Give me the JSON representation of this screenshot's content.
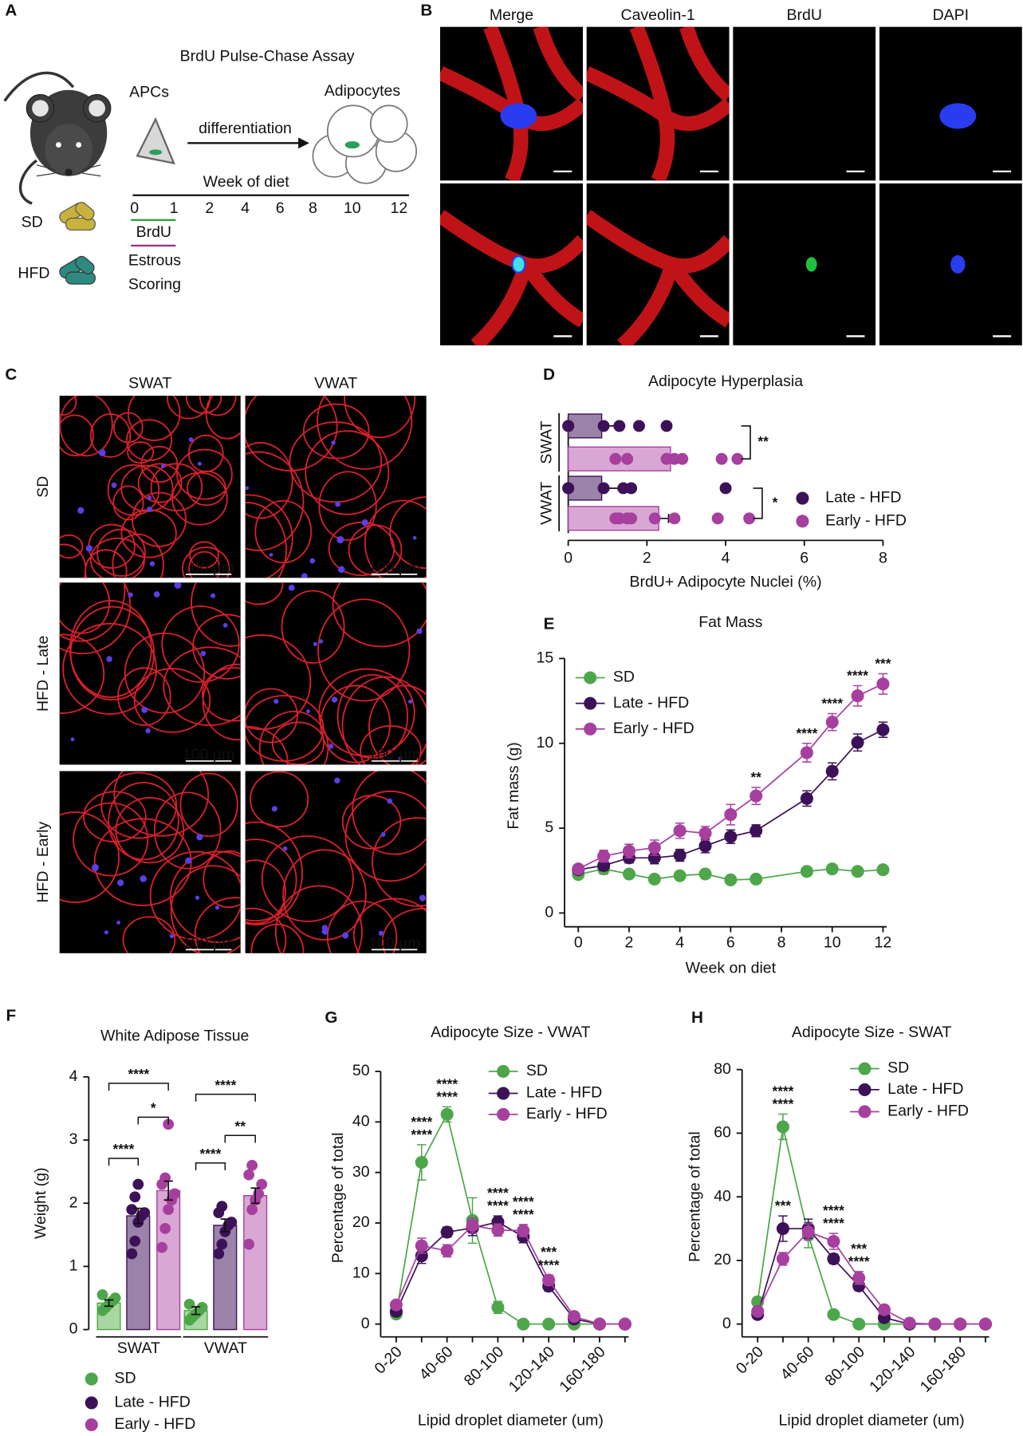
{
  "panel_letters": [
    "A",
    "B",
    "C",
    "D",
    "E",
    "F",
    "G",
    "H"
  ],
  "panel_a": {
    "title": "BrdU Pulse-Chase Assay",
    "apcs": "APCs",
    "arrow_label": "differentiation",
    "adipocytes": "Adipocytes",
    "timeline_label": "Week of diet",
    "timeline_ticks": [
      0,
      1,
      2,
      4,
      6,
      8,
      10,
      12
    ],
    "brdu": "BrdU",
    "estrous": [
      "Estrous",
      "Scoring"
    ],
    "diets": [
      "SD",
      "HFD"
    ]
  },
  "panel_b": {
    "columns": [
      "Merge",
      "Caveolin-1",
      "BrdU",
      "DAPI"
    ]
  },
  "panel_c": {
    "columns": [
      "SWAT",
      "VWAT"
    ],
    "rows": [
      "SD",
      "HFD - Late",
      "HFD - Early"
    ],
    "scale_bar": "100 µm"
  },
  "chart_data": [
    {
      "type": "bar",
      "orientation": "horizontal",
      "title": "Adipocyte Hyperplasia",
      "xlabel": "BrdU+ Adipocyte Nuclei (%)",
      "categories": [
        "SWAT",
        "VWAT"
      ],
      "xlim": [
        0,
        8
      ],
      "xticks": [
        0,
        2,
        4,
        6,
        8
      ],
      "series": [
        {
          "name": "Late - HFD",
          "color": "#3d1158",
          "fill": "#9a82a8",
          "values": [
            0.85,
            0.85
          ],
          "errors": [
            0.45,
            0.5
          ],
          "points": [
            [
              0,
              0,
              0.9,
              1.3,
              1.8,
              2.5
            ],
            [
              0,
              0,
              0.9,
              1.4,
              1.6,
              4.0
            ]
          ]
        },
        {
          "name": "Early - HFD",
          "color": "#a73f9f",
          "fill": "#d9a7d3",
          "values": [
            2.6,
            2.3
          ],
          "errors": [
            0.2,
            0.25
          ],
          "points": [
            [
              1.2,
              1.5,
              2.5,
              2.7,
              2.9,
              3.9,
              4.3
            ],
            [
              1.2,
              1.3,
              1.5,
              1.6,
              2.2,
              2.7,
              3.8,
              4.6
            ]
          ]
        }
      ],
      "significance": [
        "**",
        "*"
      ]
    },
    {
      "type": "line",
      "title": "Fat Mass",
      "xlabel": "Week on diet",
      "ylabel": "Fat mass (g)",
      "x": [
        0,
        1,
        2,
        3,
        4,
        5,
        6,
        7,
        9,
        10,
        11,
        12
      ],
      "xlim": [
        0,
        12
      ],
      "xticks": [
        0,
        2,
        4,
        6,
        8,
        10,
        12
      ],
      "ylim": [
        0,
        15
      ],
      "yticks": [
        0,
        5,
        10,
        15
      ],
      "series": [
        {
          "name": "SD",
          "color": "#4ea64a",
          "values": [
            2.27,
            2.6,
            2.3,
            2.0,
            2.2,
            2.3,
            1.95,
            2.0,
            2.45,
            2.6,
            2.45,
            2.55
          ],
          "errors": [
            0.2,
            0.3,
            0.2,
            0.15,
            0.2,
            0.15,
            0.15,
            0.15,
            0.2,
            0.2,
            0.15,
            0.15
          ]
        },
        {
          "name": "Late - HFD",
          "color": "#3d1158",
          "values": [
            2.55,
            2.8,
            3.25,
            3.25,
            3.4,
            3.95,
            4.5,
            4.85,
            6.75,
            8.35,
            10.05,
            10.8
          ],
          "errors": [
            0.15,
            0.3,
            0.3,
            0.35,
            0.35,
            0.4,
            0.4,
            0.35,
            0.45,
            0.5,
            0.5,
            0.45
          ]
        },
        {
          "name": "Early - HFD",
          "color": "#a73f9f",
          "values": [
            2.6,
            3.35,
            3.65,
            3.85,
            4.85,
            4.7,
            5.8,
            6.9,
            9.45,
            11.25,
            12.8,
            13.5
          ],
          "errors": [
            0.15,
            0.35,
            0.4,
            0.45,
            0.45,
            0.4,
            0.6,
            0.5,
            0.55,
            0.5,
            0.6,
            0.6
          ]
        }
      ],
      "significance": [
        null,
        null,
        null,
        null,
        null,
        null,
        null,
        "**",
        "****",
        "****",
        "****",
        "***"
      ],
      "significance_color": "#4a1668"
    },
    {
      "type": "bar",
      "orientation": "vertical",
      "title": "White Adipose Tissue",
      "ylabel": "Weight (g)",
      "categories": [
        "SWAT",
        "VWAT"
      ],
      "ylim": [
        0,
        4
      ],
      "yticks": [
        0,
        1,
        2,
        3,
        4
      ],
      "series": [
        {
          "name": "SD",
          "color": "#4ea64a",
          "fill": "#a8d7a0",
          "values": [
            0.42,
            0.3
          ],
          "errors": [
            0.05,
            0.06
          ],
          "points": [
            [
              0.3,
              0.35,
              0.4,
              0.45,
              0.5,
              0.55
            ],
            [
              0.15,
              0.2,
              0.25,
              0.3,
              0.35,
              0.4
            ]
          ]
        },
        {
          "name": "Late - HFD",
          "color": "#3d1158",
          "fill": "#9a82a8",
          "values": [
            1.8,
            1.65
          ],
          "errors": [
            0.12,
            0.1
          ],
          "points": [
            [
              1.2,
              1.4,
              1.7,
              1.8,
              1.85,
              1.9,
              2.1,
              2.3
            ],
            [
              1.2,
              1.35,
              1.55,
              1.65,
              1.7,
              1.85,
              1.95
            ]
          ]
        },
        {
          "name": "Early - HFD",
          "color": "#a73f9f",
          "fill": "#d9a7d3",
          "values": [
            2.2,
            2.12
          ],
          "errors": [
            0.15,
            0.12
          ],
          "points": [
            [
              1.3,
              1.6,
              1.9,
              2.05,
              2.15,
              2.3,
              2.4,
              3.25
            ],
            [
              1.35,
              1.9,
              2.05,
              2.15,
              2.3,
              2.45,
              2.6
            ]
          ]
        }
      ],
      "significance": [
        [
          "****",
          "****",
          "*"
        ],
        [
          "****",
          "****",
          "**"
        ]
      ]
    },
    {
      "type": "line",
      "title": "Adipocyte Size - VWAT",
      "xlabel": "Lipid droplet diameter (um)",
      "ylabel": "Percentage of total",
      "categories": [
        "0-20",
        null,
        "40-60",
        null,
        "80-100",
        null,
        "120-140",
        null,
        "160-180",
        null
      ],
      "ylim": [
        0,
        50
      ],
      "yticks": [
        0,
        10,
        20,
        30,
        40,
        50
      ],
      "series": [
        {
          "name": "SD",
          "color": "#4ea64a",
          "values": [
            2,
            32,
            41.5,
            20.5,
            3.3,
            0,
            0,
            0,
            0,
            0
          ],
          "errors": [
            0.5,
            3.5,
            1.5,
            4.5,
            1.2,
            0.2,
            0.1,
            0.1,
            0.1,
            0.1
          ]
        },
        {
          "name": "Late - HFD",
          "color": "#3d1158",
          "values": [
            2.5,
            13.5,
            18.2,
            19,
            20.2,
            17.3,
            7.5,
            1,
            0,
            0
          ],
          "errors": [
            0.5,
            1.5,
            1,
            1.5,
            1.2,
            1.2,
            1,
            0.4,
            0.1,
            0.1
          ],
          "significance": [
            null,
            "****",
            "****",
            null,
            "****",
            "****",
            "***",
            null,
            null,
            null
          ]
        },
        {
          "name": "Early - HFD",
          "color": "#a73f9f",
          "values": [
            3.8,
            15.5,
            14.5,
            19.5,
            18.6,
            18.5,
            8.7,
            1.5,
            0,
            0
          ],
          "errors": [
            0.5,
            1.5,
            1.2,
            1.5,
            1.2,
            1.2,
            1,
            0.5,
            0.1,
            0.1
          ],
          "significance": [
            null,
            "****",
            "****",
            null,
            "****",
            "****",
            "****",
            null,
            null,
            null
          ]
        }
      ]
    },
    {
      "type": "line",
      "title": "Adipocyte Size - SWAT",
      "xlabel": "Lipid droplet diameter (um)",
      "ylabel": "Percentage of total",
      "categories": [
        "0-20",
        null,
        "40-60",
        null,
        "80-100",
        null,
        "120-140",
        null,
        "160-180",
        null
      ],
      "ylim": [
        0,
        80
      ],
      "yticks": [
        0,
        20,
        40,
        60,
        80
      ],
      "series": [
        {
          "name": "SD",
          "color": "#4ea64a",
          "values": [
            7,
            62,
            28,
            3,
            0,
            0,
            0,
            0,
            0,
            0
          ],
          "errors": [
            1,
            4,
            4,
            0.5,
            0.2,
            0.1,
            0.1,
            0.1,
            0.1,
            0.1
          ]
        },
        {
          "name": "Late - HFD",
          "color": "#3d1158",
          "values": [
            3,
            30,
            30,
            20.5,
            12,
            2,
            0,
            0,
            0,
            0
          ],
          "errors": [
            1,
            4,
            3,
            1.5,
            1.5,
            0.8,
            0.3,
            0.1,
            0.1,
            0.1
          ],
          "significance": [
            null,
            "****",
            null,
            "****",
            "***",
            null,
            null,
            null,
            null,
            null
          ]
        },
        {
          "name": "Early - HFD",
          "color": "#a73f9f",
          "values": [
            4,
            20.5,
            29,
            26,
            14.5,
            4.5,
            0.3,
            0,
            0,
            0
          ],
          "errors": [
            1,
            2,
            2.5,
            2.5,
            2,
            0.8,
            0.3,
            0.1,
            0.1,
            0.1
          ],
          "significance": [
            null,
            "****",
            null,
            "****",
            "****",
            null,
            null,
            null,
            null,
            null
          ],
          "significance_vs_late": [
            null,
            "***",
            null,
            null,
            null,
            null,
            null,
            null,
            null,
            null
          ]
        }
      ]
    }
  ]
}
